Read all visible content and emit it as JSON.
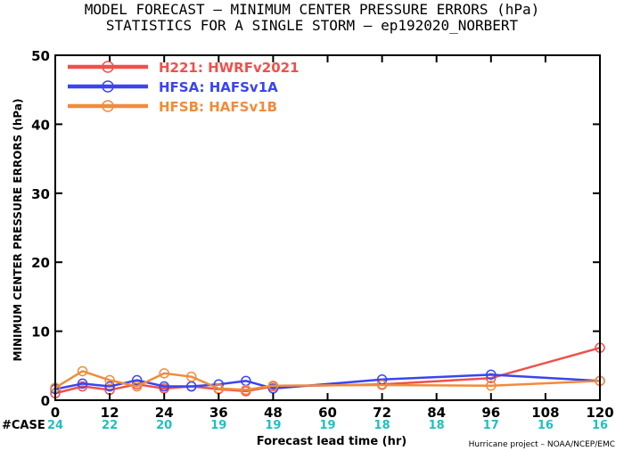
{
  "chart_data": {
    "type": "line",
    "title": "MODEL FORECAST – MINIMUM CENTER PRESSURE ERRORS (hPa)",
    "subtitle": "STATISTICS FOR A SINGLE STORM – ep192020_NORBERT",
    "xlabel": "Forecast lead time (hr)",
    "ylabel": "MINIMUM CENTER PRESSURE ERRORS (hPa)",
    "xlim": [
      0,
      120
    ],
    "ylim": [
      0,
      50
    ],
    "xticks": [
      0,
      12,
      24,
      36,
      48,
      60,
      72,
      84,
      96,
      108,
      120
    ],
    "yticks": [
      0,
      10,
      20,
      30,
      40,
      50
    ],
    "legend_position": "top-left",
    "series": [
      {
        "name": "H221: HWRFv2021",
        "color": "#f0504b",
        "x": [
          0,
          6,
          12,
          18,
          24,
          30,
          36,
          42,
          48,
          72,
          96,
          120
        ],
        "y": [
          1.0,
          2.0,
          1.5,
          2.3,
          1.7,
          2.0,
          1.6,
          1.3,
          2.0,
          2.3,
          3.2,
          7.6
        ]
      },
      {
        "name": "HFSA: HAFSv1A",
        "color": "#3a45f0",
        "x": [
          0,
          6,
          12,
          18,
          24,
          30,
          36,
          42,
          48,
          72,
          96,
          120
        ],
        "y": [
          1.6,
          2.4,
          2.0,
          2.9,
          2.0,
          2.0,
          2.3,
          2.8,
          1.7,
          3.0,
          3.7,
          2.8
        ]
      },
      {
        "name": "HFSB: HAFSv1B",
        "color": "#f08c3c",
        "x": [
          0,
          6,
          12,
          18,
          24,
          30,
          36,
          42,
          48,
          72,
          96,
          120
        ],
        "y": [
          1.8,
          4.2,
          2.9,
          2.0,
          3.9,
          3.4,
          1.7,
          1.5,
          2.1,
          2.2,
          2.1,
          2.8
        ]
      }
    ],
    "case_label": "#CASE",
    "case_counts": [
      "24",
      "22",
      "20",
      "19",
      "19",
      "19",
      "18",
      "18",
      "17",
      "16",
      "16"
    ],
    "case_color": "#1fbfc0",
    "credit": "Hurricane project – NOAA/NCEP/EMC"
  }
}
